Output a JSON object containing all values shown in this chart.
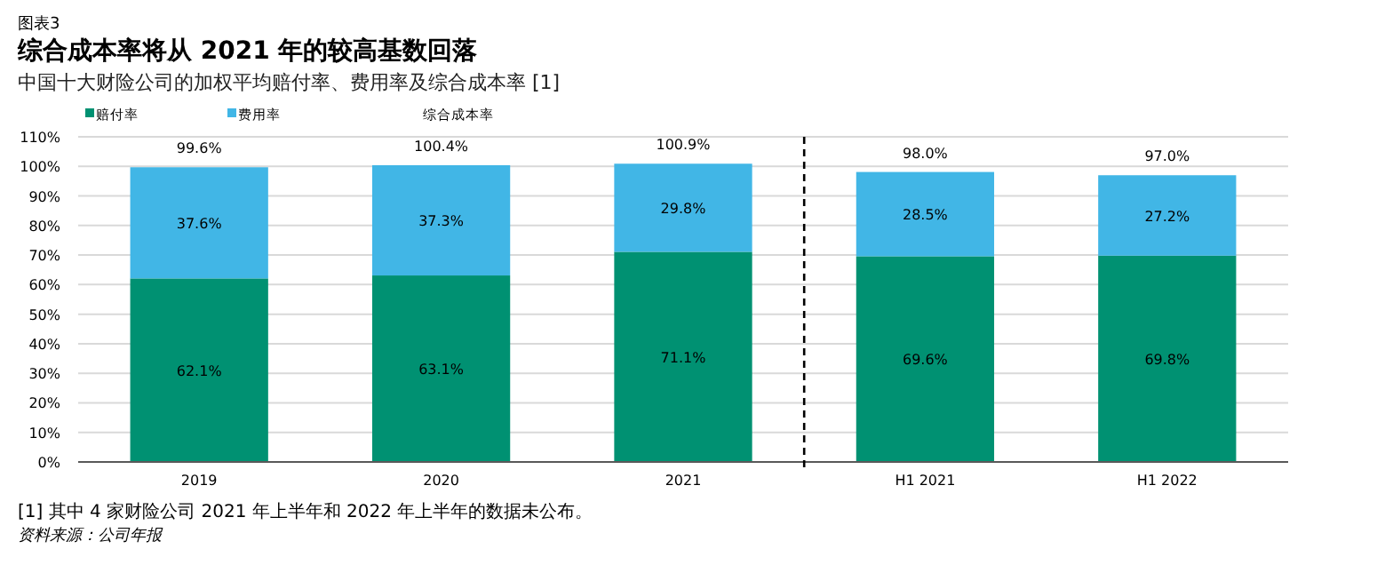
{
  "chart_data": {
    "type": "bar",
    "stacked": true,
    "subtitle": "图表3",
    "title": "综合成本率将从 2021 年的较高基数回落",
    "ylabel": "中国十大财险公司的加权平均赔付率、费用率及综合成本率 [1]",
    "categories": [
      "2019",
      "2020",
      "2021",
      "H1 2021",
      "H1 2022"
    ],
    "series": [
      {
        "name": "赔付率",
        "color": "#009172",
        "values": [
          62.1,
          63.1,
          71.1,
          69.6,
          69.8
        ],
        "value_labels": [
          "62.1%",
          "63.1%",
          "71.1%",
          "69.6%",
          "69.8%"
        ]
      },
      {
        "name": "费用率",
        "color": "#41b6e6",
        "values": [
          37.6,
          37.3,
          29.8,
          28.5,
          27.2
        ],
        "value_labels": [
          "37.6%",
          "37.3%",
          "29.8%",
          "28.5%",
          "27.2%"
        ]
      }
    ],
    "legend_title": "综合成本率",
    "totals": [
      "99.6%",
      "100.4%",
      "100.9%",
      "98.0%",
      "97.0%"
    ],
    "ylim": [
      0,
      110
    ],
    "yticks": [
      {
        "value": 0,
        "label": "0%"
      },
      {
        "value": 10,
        "label": "10%"
      },
      {
        "value": 20,
        "label": "20%"
      },
      {
        "value": 30,
        "label": "30%"
      },
      {
        "value": 40,
        "label": "40%"
      },
      {
        "value": 50,
        "label": "50%"
      },
      {
        "value": 60,
        "label": "60%"
      },
      {
        "value": 70,
        "label": "70%"
      },
      {
        "value": 80,
        "label": "80%"
      },
      {
        "value": 90,
        "label": "90%"
      },
      {
        "value": 100,
        "label": "100%"
      },
      {
        "value": 110,
        "label": "110%"
      }
    ],
    "grid": "y",
    "legend": "top left",
    "annotations": [
      "[1] 其中 4 家财险公司 2021 年上半年和 2022 年上半年的数据未公布。",
      "资料来源：公司年报"
    ]
  }
}
